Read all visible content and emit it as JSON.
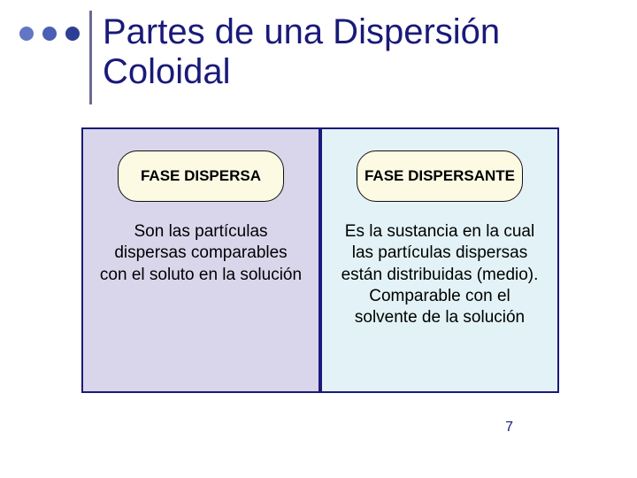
{
  "title": "Partes de una Dispersión Coloidal",
  "bullets": {
    "colors": [
      "#6276c4",
      "#4a5fb4",
      "#2d3f94"
    ]
  },
  "panels": {
    "left": {
      "bg": "#d9d6ec",
      "pill_label": "FASE DISPERSA",
      "desc": "Son las partículas dispersas comparables con el soluto en la solución"
    },
    "right": {
      "bg": "#e2f2f6",
      "pill_label": "FASE DISPERSANTE",
      "desc": "Es la sustancia en la cual las partículas dispersas están distribuidas (medio). Comparable con el solvente de la solución"
    }
  },
  "page_number": "7",
  "colors": {
    "title": "#1a1a7a",
    "rule": "#6b6b8f",
    "panel_border": "#1a1a7a",
    "pill_bg": "#fcfae3"
  }
}
